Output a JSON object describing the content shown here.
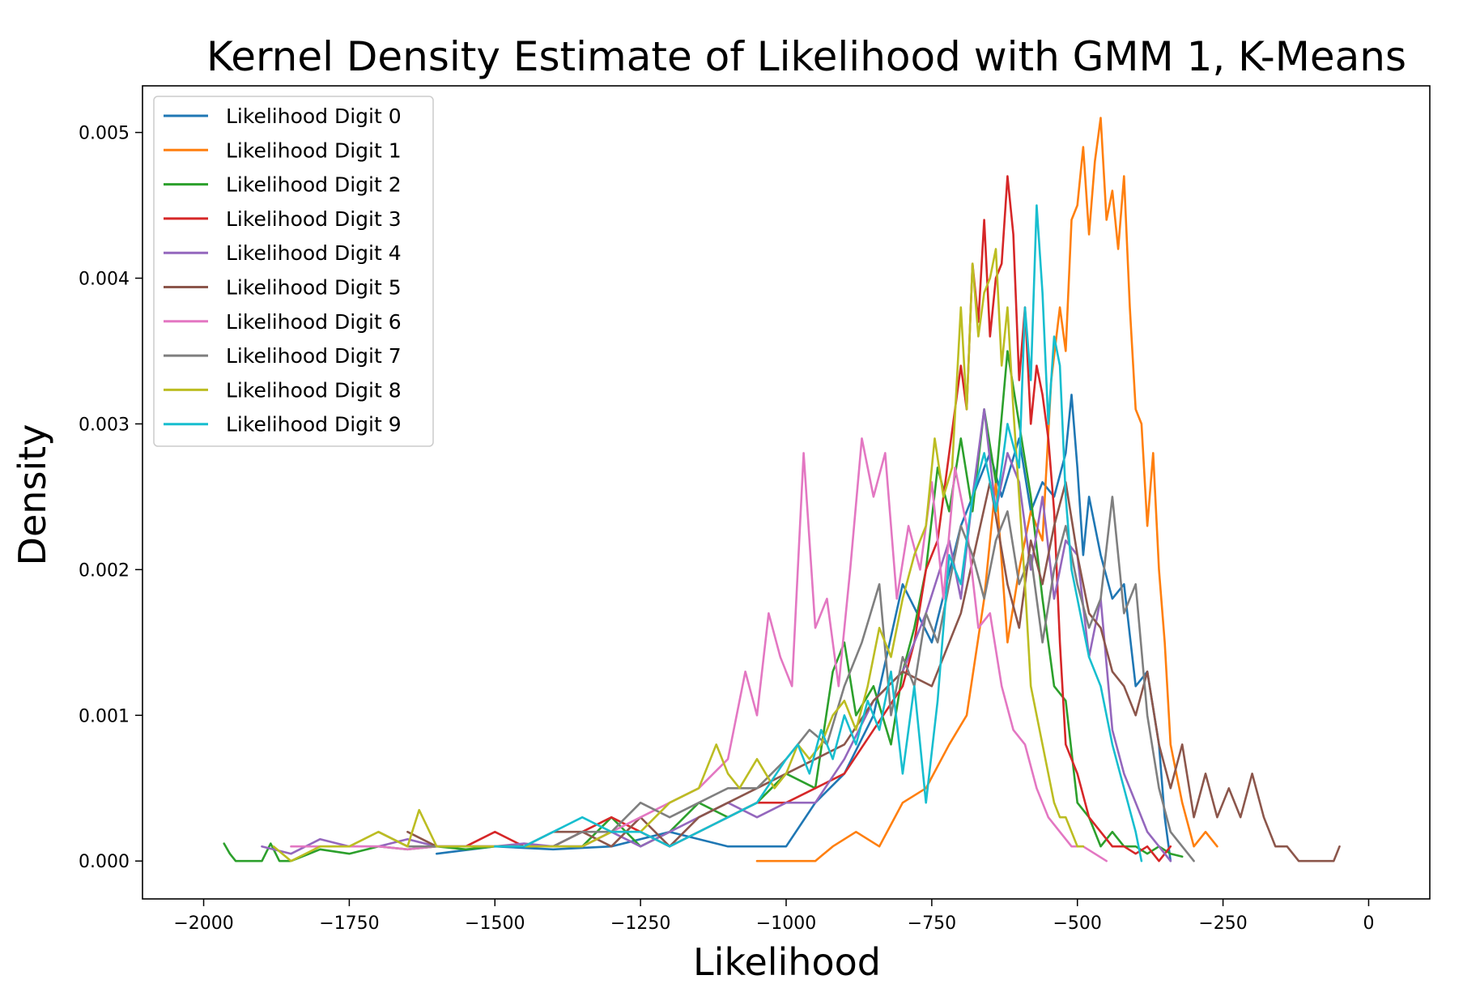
{
  "chart_data": {
    "type": "line",
    "title": "Kernel Density Estimate of Likelihood with GMM 1, K-Means",
    "xlabel": "Likelihood",
    "ylabel": "Density",
    "xlim": [
      -2105,
      105
    ],
    "ylim": [
      -0.00026,
      0.00532
    ],
    "xticks": [
      -2000,
      -1750,
      -1500,
      -1250,
      -1000,
      -750,
      -500,
      -250,
      0
    ],
    "xtick_labels": [
      "−2000",
      "−1750",
      "−1500",
      "−1250",
      "−1000",
      "−750",
      "−500",
      "−250",
      "0"
    ],
    "yticks": [
      0.0,
      0.001,
      0.002,
      0.003,
      0.004,
      0.005
    ],
    "ytick_labels": [
      "0.000",
      "0.001",
      "0.002",
      "0.003",
      "0.004",
      "0.005"
    ],
    "grid": false,
    "legend_position": "upper-left",
    "series": [
      {
        "name": "Likelihood Digit 0",
        "color": "#1f77b4",
        "x": [
          -1600,
          -1500,
          -1400,
          -1300,
          -1200,
          -1100,
          -1000,
          -950,
          -900,
          -850,
          -800,
          -750,
          -700,
          -650,
          -630,
          -600,
          -580,
          -560,
          -540,
          -520,
          -510,
          -500,
          -490,
          -480,
          -460,
          -440,
          -420,
          -400,
          -380,
          -360,
          -350,
          -340
        ],
        "y": [
          5e-05,
          0.0001,
          8e-05,
          0.0001,
          0.0002,
          0.0001,
          0.0001,
          0.0004,
          0.0006,
          0.001,
          0.0019,
          0.0015,
          0.0023,
          0.0028,
          0.0025,
          0.0029,
          0.0024,
          0.0026,
          0.0025,
          0.0028,
          0.0032,
          0.0027,
          0.0021,
          0.0025,
          0.0021,
          0.0018,
          0.0019,
          0.0012,
          0.0013,
          0.0008,
          0.0003,
          0.0
        ]
      },
      {
        "name": "Likelihood Digit 1",
        "color": "#ff7f0e",
        "x": [
          -1050,
          -1000,
          -950,
          -920,
          -880,
          -840,
          -800,
          -760,
          -720,
          -690,
          -660,
          -640,
          -620,
          -600,
          -580,
          -560,
          -545,
          -530,
          -520,
          -510,
          -500,
          -490,
          -480,
          -470,
          -460,
          -450,
          -440,
          -430,
          -420,
          -410,
          -400,
          -390,
          -380,
          -370,
          -360,
          -350,
          -340,
          -320,
          -300,
          -280,
          -260
        ],
        "y": [
          0.0,
          0.0,
          0.0,
          0.0001,
          0.0002,
          0.0001,
          0.0004,
          0.0005,
          0.0008,
          0.001,
          0.0018,
          0.0026,
          0.0015,
          0.002,
          0.0024,
          0.0022,
          0.0033,
          0.0038,
          0.0035,
          0.0044,
          0.0045,
          0.0049,
          0.0043,
          0.0048,
          0.0051,
          0.0044,
          0.0046,
          0.0042,
          0.0047,
          0.0038,
          0.0031,
          0.003,
          0.0023,
          0.0028,
          0.002,
          0.0015,
          0.0008,
          0.0004,
          0.0001,
          0.0002,
          0.0001
        ]
      },
      {
        "name": "Likelihood Digit 2",
        "color": "#2ca02c",
        "x": [
          -1965,
          -1955,
          -1945,
          -1935,
          -1920,
          -1900,
          -1885,
          -1870,
          -1850,
          -1800,
          -1750,
          -1700,
          -1650,
          -1600,
          -1550,
          -1500,
          -1450,
          -1400,
          -1350,
          -1300,
          -1250,
          -1200,
          -1150,
          -1100,
          -1050,
          -1000,
          -950,
          -920,
          -900,
          -880,
          -850,
          -820,
          -800,
          -780,
          -760,
          -740,
          -720,
          -700,
          -680,
          -660,
          -640,
          -620,
          -600,
          -580,
          -560,
          -540,
          -520,
          -500,
          -480,
          -460,
          -440,
          -420,
          -400,
          -380,
          -360,
          -340,
          -320
        ],
        "y": [
          0.00012,
          5e-05,
          0.0,
          0.0,
          0.0,
          0.0,
          0.00012,
          0.0,
          0.0,
          8e-05,
          5e-05,
          0.0001,
          8e-05,
          0.0001,
          8e-05,
          0.0001,
          0.0001,
          0.0001,
          0.0001,
          0.0003,
          0.0001,
          0.0002,
          0.0004,
          0.0003,
          0.0004,
          0.0006,
          0.0005,
          0.0013,
          0.0015,
          0.001,
          0.0012,
          0.0008,
          0.0013,
          0.0016,
          0.002,
          0.0027,
          0.0024,
          0.0029,
          0.0024,
          0.0031,
          0.0026,
          0.0035,
          0.003,
          0.0025,
          0.0018,
          0.0012,
          0.0011,
          0.0004,
          0.0003,
          0.0001,
          0.0002,
          0.0001,
          0.0001,
          5e-05,
          0.0001,
          5e-05,
          3e-05
        ]
      },
      {
        "name": "Likelihood Digit 3",
        "color": "#d62728",
        "x": [
          -1550,
          -1500,
          -1450,
          -1400,
          -1350,
          -1300,
          -1250,
          -1200,
          -1150,
          -1100,
          -1050,
          -1000,
          -950,
          -900,
          -850,
          -800,
          -780,
          -760,
          -740,
          -720,
          -700,
          -690,
          -680,
          -670,
          -660,
          -650,
          -640,
          -630,
          -620,
          -610,
          -600,
          -590,
          -580,
          -570,
          -560,
          -550,
          -540,
          -530,
          -520,
          -500,
          -480,
          -460,
          -440,
          -420,
          -400,
          -380,
          -360,
          -340
        ],
        "y": [
          0.0001,
          0.0002,
          0.0001,
          0.0001,
          0.0002,
          0.0003,
          0.0002,
          0.0001,
          0.0002,
          0.0003,
          0.0004,
          0.0004,
          0.0005,
          0.0006,
          0.0009,
          0.0012,
          0.0015,
          0.002,
          0.0022,
          0.0028,
          0.0034,
          0.0031,
          0.0041,
          0.0037,
          0.0044,
          0.0036,
          0.004,
          0.0041,
          0.0047,
          0.0043,
          0.0033,
          0.0038,
          0.003,
          0.0034,
          0.0032,
          0.0029,
          0.0024,
          0.0015,
          0.0008,
          0.0006,
          0.0003,
          0.0002,
          0.0001,
          0.0001,
          5e-05,
          0.0001,
          0.0,
          0.0001
        ]
      },
      {
        "name": "Likelihood Digit 4",
        "color": "#9467bd",
        "x": [
          -1900,
          -1850,
          -1800,
          -1750,
          -1700,
          -1650,
          -1600,
          -1550,
          -1500,
          -1450,
          -1400,
          -1350,
          -1300,
          -1250,
          -1200,
          -1150,
          -1100,
          -1050,
          -1000,
          -950,
          -900,
          -850,
          -800,
          -760,
          -720,
          -700,
          -680,
          -660,
          -640,
          -620,
          -600,
          -580,
          -560,
          -540,
          -520,
          -500,
          -480,
          -460,
          -440,
          -420,
          -400,
          -380,
          -360,
          -340
        ],
        "y": [
          0.0001,
          5e-05,
          0.00015,
          0.0001,
          0.0001,
          0.00015,
          0.0001,
          0.0001,
          0.0001,
          0.00012,
          0.0001,
          0.0001,
          0.0002,
          0.0001,
          0.0002,
          0.0003,
          0.0004,
          0.0003,
          0.0004,
          0.0004,
          0.0007,
          0.0011,
          0.0013,
          0.0017,
          0.0022,
          0.0018,
          0.0025,
          0.0031,
          0.0024,
          0.0028,
          0.0026,
          0.002,
          0.0025,
          0.0018,
          0.0022,
          0.0021,
          0.0014,
          0.0018,
          0.0009,
          0.0006,
          0.0004,
          0.0002,
          0.0001,
          0.0
        ]
      },
      {
        "name": "Likelihood Digit 5",
        "color": "#8c564b",
        "x": [
          -1650,
          -1600,
          -1550,
          -1500,
          -1450,
          -1400,
          -1350,
          -1300,
          -1250,
          -1200,
          -1150,
          -1100,
          -1050,
          -1000,
          -950,
          -900,
          -850,
          -800,
          -750,
          -700,
          -650,
          -620,
          -600,
          -580,
          -560,
          -540,
          -520,
          -500,
          -480,
          -460,
          -440,
          -420,
          -400,
          -380,
          -360,
          -340,
          -320,
          -300,
          -280,
          -260,
          -240,
          -220,
          -200,
          -180,
          -160,
          -140,
          -120,
          -100,
          -80,
          -60,
          -50
        ],
        "y": [
          0.0002,
          0.0001,
          0.0001,
          0.0001,
          0.0001,
          0.0002,
          0.0002,
          0.0001,
          0.0003,
          0.0001,
          0.0003,
          0.0004,
          0.0005,
          0.0006,
          0.0007,
          0.0008,
          0.0011,
          0.0013,
          0.0012,
          0.0017,
          0.0026,
          0.0019,
          0.0016,
          0.0022,
          0.0019,
          0.0023,
          0.0026,
          0.0021,
          0.0017,
          0.0016,
          0.0013,
          0.0012,
          0.001,
          0.0013,
          0.0008,
          0.0005,
          0.0008,
          0.0003,
          0.0006,
          0.0003,
          0.0005,
          0.0003,
          0.0006,
          0.0003,
          0.0001,
          0.0001,
          0.0,
          0.0,
          0.0,
          0.0,
          0.0001
        ]
      },
      {
        "name": "Likelihood Digit 6",
        "color": "#e377c2",
        "x": [
          -1850,
          -1800,
          -1750,
          -1700,
          -1650,
          -1600,
          -1550,
          -1500,
          -1450,
          -1400,
          -1350,
          -1300,
          -1250,
          -1200,
          -1150,
          -1100,
          -1070,
          -1050,
          -1030,
          -1010,
          -990,
          -970,
          -950,
          -930,
          -910,
          -890,
          -870,
          -850,
          -830,
          -810,
          -790,
          -770,
          -750,
          -730,
          -710,
          -690,
          -670,
          -650,
          -630,
          -610,
          -590,
          -570,
          -550,
          -530,
          -510,
          -490,
          -470,
          -450
        ],
        "y": [
          0.0001,
          0.0001,
          0.0001,
          0.0001,
          8e-05,
          0.0001,
          0.0001,
          0.0001,
          0.0001,
          0.0001,
          0.0001,
          0.0002,
          0.0003,
          0.0004,
          0.0005,
          0.0007,
          0.0013,
          0.001,
          0.0017,
          0.0014,
          0.0012,
          0.0028,
          0.0016,
          0.0018,
          0.0012,
          0.002,
          0.0029,
          0.0025,
          0.0028,
          0.0018,
          0.0023,
          0.002,
          0.0026,
          0.0018,
          0.0027,
          0.0023,
          0.0016,
          0.0017,
          0.0012,
          0.0009,
          0.0008,
          0.0005,
          0.0003,
          0.0002,
          0.0001,
          0.0001,
          5e-05,
          0.0
        ]
      },
      {
        "name": "Likelihood Digit 7",
        "color": "#7f7f7f",
        "x": [
          -1700,
          -1650,
          -1600,
          -1550,
          -1500,
          -1450,
          -1400,
          -1350,
          -1300,
          -1250,
          -1200,
          -1150,
          -1100,
          -1050,
          -1000,
          -960,
          -930,
          -900,
          -870,
          -840,
          -820,
          -800,
          -780,
          -760,
          -740,
          -720,
          -700,
          -680,
          -660,
          -640,
          -620,
          -600,
          -580,
          -560,
          -540,
          -520,
          -500,
          -480,
          -460,
          -440,
          -420,
          -400,
          -380,
          -360,
          -340,
          -320,
          -300
        ],
        "y": [
          0.0002,
          0.0001,
          0.0001,
          0.0001,
          0.0001,
          0.0001,
          0.0001,
          0.0002,
          0.0002,
          0.0004,
          0.0003,
          0.0004,
          0.0005,
          0.0005,
          0.0007,
          0.0009,
          0.0008,
          0.0012,
          0.0015,
          0.0019,
          0.001,
          0.0014,
          0.0012,
          0.0017,
          0.0015,
          0.0019,
          0.0023,
          0.0021,
          0.0018,
          0.0022,
          0.0024,
          0.0019,
          0.0021,
          0.0015,
          0.002,
          0.0023,
          0.0019,
          0.0016,
          0.0018,
          0.0025,
          0.0017,
          0.0019,
          0.001,
          0.0005,
          0.0002,
          0.0001,
          0.0
        ]
      },
      {
        "name": "Likelihood Digit 8",
        "color": "#bcbd22",
        "x": [
          -1880,
          -1850,
          -1800,
          -1750,
          -1700,
          -1650,
          -1630,
          -1600,
          -1550,
          -1500,
          -1450,
          -1400,
          -1350,
          -1300,
          -1250,
          -1200,
          -1150,
          -1120,
          -1100,
          -1080,
          -1050,
          -1020,
          -1000,
          -980,
          -960,
          -940,
          -920,
          -900,
          -880,
          -860,
          -840,
          -820,
          -800,
          -780,
          -760,
          -745,
          -730,
          -715,
          -700,
          -690,
          -680,
          -670,
          -660,
          -650,
          -640,
          -630,
          -620,
          -610,
          -600,
          -590,
          -580,
          -570,
          -560,
          -550,
          -540,
          -530,
          -520,
          -510,
          -500,
          -490
        ],
        "y": [
          0.0001,
          0.0,
          0.0001,
          0.0001,
          0.0002,
          0.0001,
          0.00035,
          0.0001,
          0.0001,
          0.0001,
          0.0001,
          0.0001,
          0.0001,
          0.0002,
          0.0002,
          0.0004,
          0.0005,
          0.0008,
          0.0006,
          0.0005,
          0.0007,
          0.0005,
          0.0006,
          0.0008,
          0.0007,
          0.0008,
          0.001,
          0.0011,
          0.0009,
          0.0012,
          0.0016,
          0.0014,
          0.0018,
          0.0021,
          0.0023,
          0.0029,
          0.0025,
          0.0027,
          0.0038,
          0.0031,
          0.0041,
          0.0036,
          0.0039,
          0.004,
          0.0042,
          0.0034,
          0.0038,
          0.0031,
          0.0025,
          0.0019,
          0.0012,
          0.001,
          0.0008,
          0.0006,
          0.0004,
          0.0003,
          0.0003,
          0.0002,
          0.0001,
          0.0001
        ]
      },
      {
        "name": "Likelihood Digit 9",
        "color": "#17becf",
        "x": [
          -1500,
          -1450,
          -1400,
          -1350,
          -1300,
          -1250,
          -1200,
          -1150,
          -1100,
          -1050,
          -1000,
          -980,
          -960,
          -940,
          -920,
          -900,
          -880,
          -860,
          -840,
          -820,
          -800,
          -780,
          -760,
          -740,
          -720,
          -700,
          -680,
          -660,
          -640,
          -620,
          -600,
          -590,
          -580,
          -570,
          -560,
          -550,
          -540,
          -530,
          -520,
          -510,
          -500,
          -480,
          -460,
          -440,
          -420,
          -400,
          -390
        ],
        "y": [
          0.0001,
          0.0001,
          0.0002,
          0.0003,
          0.0002,
          0.0002,
          0.0001,
          0.0002,
          0.0003,
          0.0004,
          0.0007,
          0.0008,
          0.0006,
          0.0009,
          0.0007,
          0.001,
          0.0008,
          0.0011,
          0.0009,
          0.0013,
          0.0006,
          0.0012,
          0.0004,
          0.0011,
          0.0021,
          0.0019,
          0.0025,
          0.0028,
          0.0024,
          0.003,
          0.0027,
          0.0038,
          0.0033,
          0.0045,
          0.0039,
          0.003,
          0.0036,
          0.0034,
          0.0025,
          0.002,
          0.0018,
          0.0014,
          0.0012,
          0.0008,
          0.0005,
          0.0002,
          0.0
        ]
      }
    ]
  }
}
